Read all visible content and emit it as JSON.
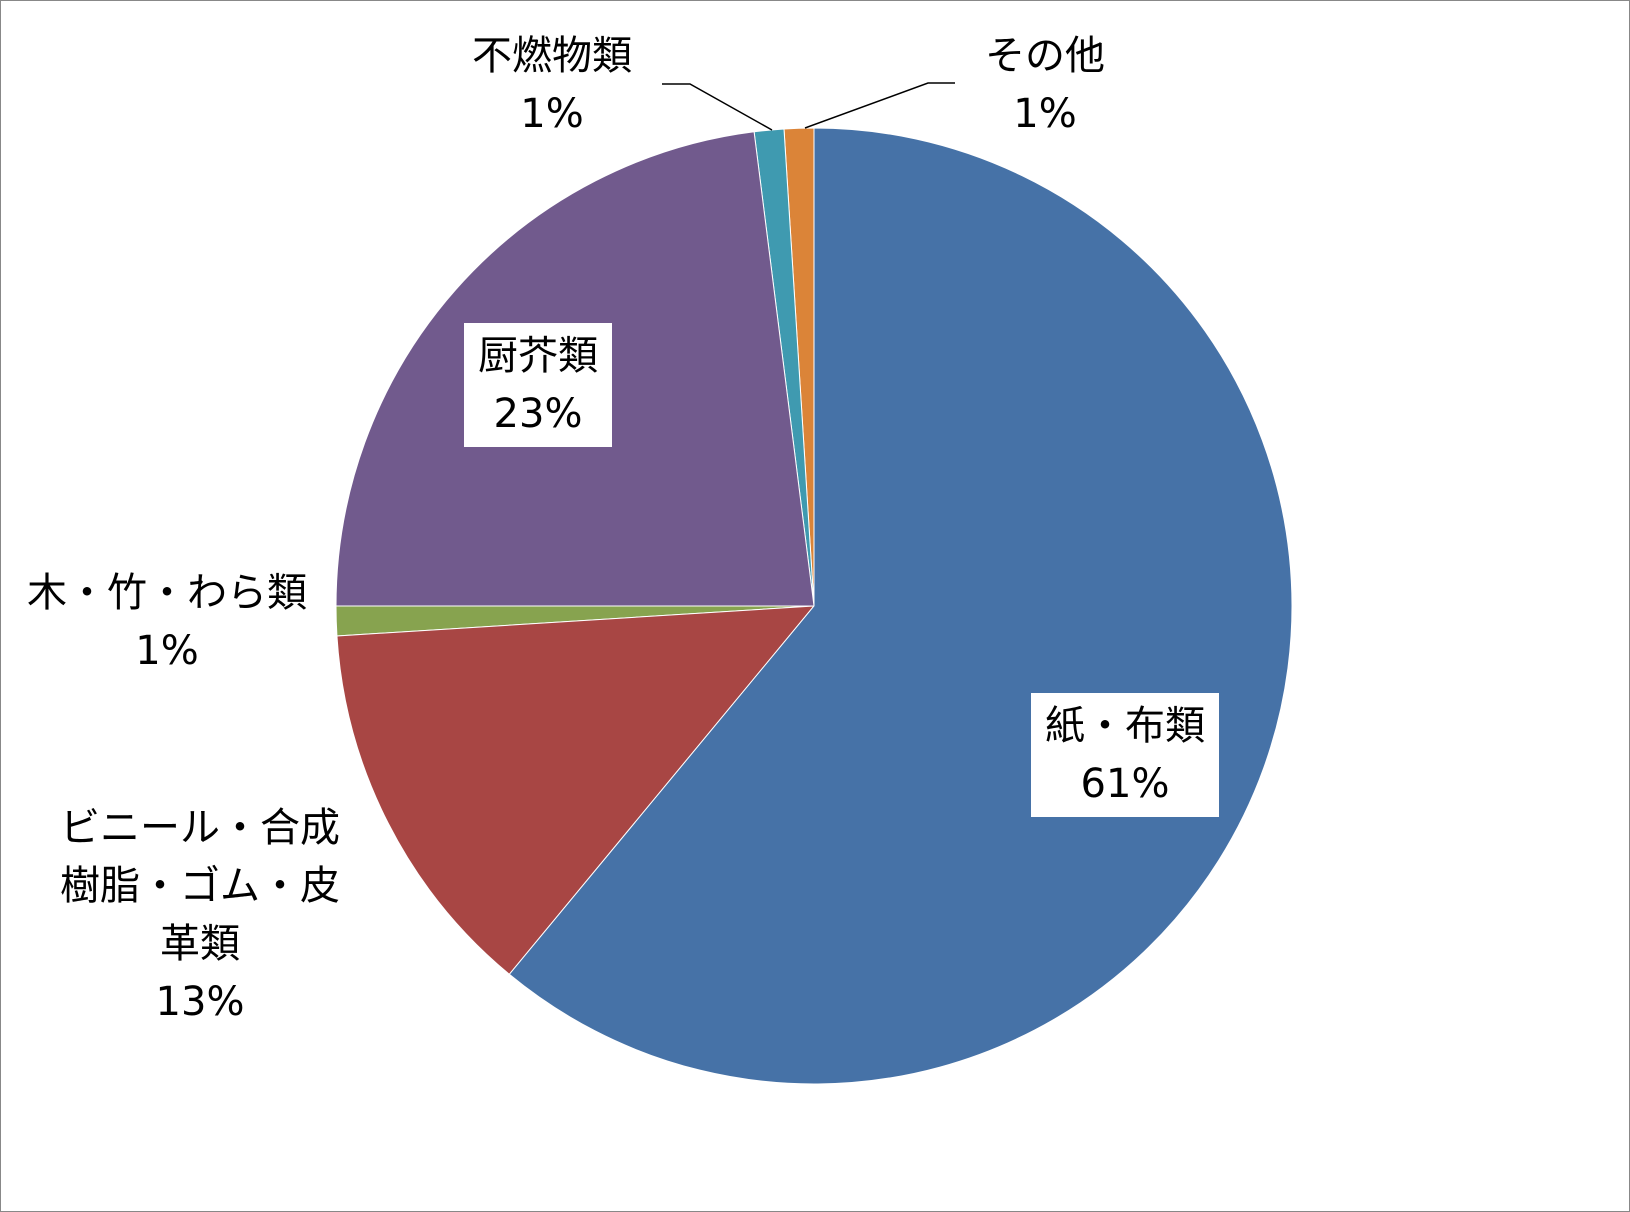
{
  "chart_data": {
    "type": "pie",
    "categories": [
      "紙・布類",
      "ビニール・合成樹脂・ゴム・皮革類",
      "木・竹・わら類",
      "厨芥類",
      "不燃物類",
      "その他"
    ],
    "values": [
      61,
      13,
      1,
      23,
      1,
      1
    ],
    "value_labels": [
      "61%",
      "13%",
      "1%",
      "23%",
      "1%",
      "1%"
    ],
    "colors": [
      "#4672a7",
      "#a84644",
      "#87a34f",
      "#715a8d",
      "#3f9ab0",
      "#db8438"
    ]
  }
}
